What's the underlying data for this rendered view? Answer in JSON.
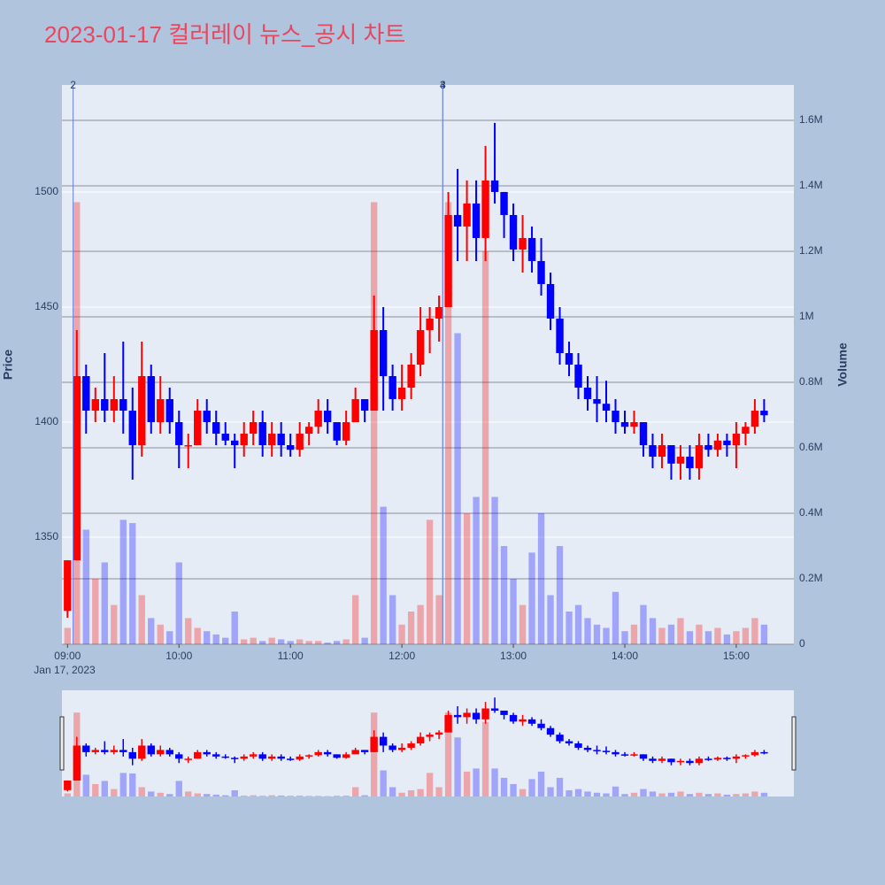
{
  "chart_data": {
    "type": "candlestick",
    "title": "2023-01-17 컬러레이 뉴스_공시 차트",
    "ylabel": "Price",
    "y2label": "Volume",
    "x_date_label": "Jan 17, 2023",
    "up_color": "#ff0000",
    "down_color": "#0000ff",
    "x": [
      "2023-01-17 09:00",
      "2023-01-17 09:05",
      "2023-01-17 09:10",
      "2023-01-17 09:15",
      "2023-01-17 09:20",
      "2023-01-17 09:25",
      "2023-01-17 09:30",
      "2023-01-17 09:35",
      "2023-01-17 09:40",
      "2023-01-17 09:45",
      "2023-01-17 09:50",
      "2023-01-17 09:55",
      "2023-01-17 10:00",
      "2023-01-17 10:05",
      "2023-01-17 10:10",
      "2023-01-17 10:15",
      "2023-01-17 10:20",
      "2023-01-17 10:25",
      "2023-01-17 10:30",
      "2023-01-17 10:35",
      "2023-01-17 10:40",
      "2023-01-17 10:45",
      "2023-01-17 10:50",
      "2023-01-17 10:55",
      "2023-01-17 11:00",
      "2023-01-17 11:05",
      "2023-01-17 11:10",
      "2023-01-17 11:15",
      "2023-01-17 11:20",
      "2023-01-17 11:25",
      "2023-01-17 11:30",
      "2023-01-17 11:35",
      "2023-01-17 11:40",
      "2023-01-17 11:45",
      "2023-01-17 11:50",
      "2023-01-17 11:55",
      "2023-01-17 12:00",
      "2023-01-17 12:05",
      "2023-01-17 12:10",
      "2023-01-17 12:15",
      "2023-01-17 12:20",
      "2023-01-17 12:25",
      "2023-01-17 12:30",
      "2023-01-17 12:35",
      "2023-01-17 12:40",
      "2023-01-17 12:45",
      "2023-01-17 12:50",
      "2023-01-17 12:55",
      "2023-01-17 13:00",
      "2023-01-17 13:05",
      "2023-01-17 13:10",
      "2023-01-17 13:15",
      "2023-01-17 13:20",
      "2023-01-17 13:25",
      "2023-01-17 13:30",
      "2023-01-17 13:35",
      "2023-01-17 13:40",
      "2023-01-17 13:45",
      "2023-01-17 13:50",
      "2023-01-17 13:55",
      "2023-01-17 14:00",
      "2023-01-17 14:05",
      "2023-01-17 14:10",
      "2023-01-17 14:15",
      "2023-01-17 14:20",
      "2023-01-17 14:25",
      "2023-01-17 14:30",
      "2023-01-17 14:35",
      "2023-01-17 14:40",
      "2023-01-17 14:45",
      "2023-01-17 14:50",
      "2023-01-17 14:55",
      "2023-01-17 15:00",
      "2023-01-17 15:05",
      "2023-01-17 15:10",
      "2023-01-17 15:15"
    ],
    "open": [
      1318,
      1340,
      1420,
      1405,
      1410,
      1405,
      1410,
      1405,
      1390,
      1420,
      1400,
      1410,
      1400,
      1390,
      1390,
      1405,
      1400,
      1395,
      1392,
      1390,
      1395,
      1400,
      1390,
      1395,
      1390,
      1388,
      1395,
      1398,
      1405,
      1400,
      1392,
      1400,
      1410,
      1405,
      1440,
      1420,
      1410,
      1415,
      1425,
      1440,
      1445,
      1450,
      1490,
      1485,
      1495,
      1480,
      1505,
      1500,
      1490,
      1475,
      1480,
      1470,
      1460,
      1445,
      1430,
      1425,
      1415,
      1410,
      1408,
      1405,
      1400,
      1398,
      1400,
      1390,
      1385,
      1390,
      1382,
      1385,
      1380,
      1390,
      1388,
      1392,
      1390,
      1395,
      1398,
      1405
    ],
    "high": [
      1340,
      1440,
      1425,
      1415,
      1430,
      1420,
      1435,
      1415,
      1435,
      1425,
      1420,
      1415,
      1405,
      1395,
      1410,
      1410,
      1405,
      1400,
      1395,
      1400,
      1405,
      1405,
      1400,
      1400,
      1395,
      1400,
      1400,
      1410,
      1410,
      1400,
      1405,
      1415,
      1410,
      1455,
      1450,
      1425,
      1425,
      1430,
      1450,
      1450,
      1455,
      1500,
      1510,
      1505,
      1505,
      1520,
      1530,
      1500,
      1495,
      1490,
      1485,
      1480,
      1465,
      1450,
      1435,
      1430,
      1420,
      1420,
      1418,
      1410,
      1405,
      1405,
      1400,
      1395,
      1395,
      1390,
      1390,
      1390,
      1395,
      1395,
      1395,
      1395,
      1400,
      1400,
      1410,
      1410
    ],
    "low": [
      1315,
      1340,
      1395,
      1400,
      1400,
      1400,
      1395,
      1375,
      1385,
      1395,
      1395,
      1395,
      1380,
      1380,
      1390,
      1395,
      1390,
      1390,
      1380,
      1385,
      1390,
      1385,
      1385,
      1385,
      1385,
      1385,
      1390,
      1395,
      1395,
      1390,
      1390,
      1400,
      1400,
      1405,
      1405,
      1405,
      1405,
      1410,
      1420,
      1430,
      1435,
      1450,
      1470,
      1470,
      1470,
      1470,
      1495,
      1480,
      1470,
      1465,
      1465,
      1455,
      1440,
      1425,
      1420,
      1410,
      1405,
      1400,
      1400,
      1395,
      1395,
      1395,
      1385,
      1380,
      1380,
      1375,
      1375,
      1375,
      1375,
      1385,
      1385,
      1385,
      1380,
      1390,
      1395,
      1400
    ],
    "close": [
      1340,
      1420,
      1405,
      1410,
      1405,
      1410,
      1405,
      1390,
      1420,
      1400,
      1410,
      1400,
      1390,
      1390,
      1405,
      1400,
      1395,
      1392,
      1390,
      1395,
      1400,
      1390,
      1395,
      1390,
      1388,
      1395,
      1398,
      1405,
      1400,
      1392,
      1400,
      1410,
      1405,
      1440,
      1420,
      1410,
      1415,
      1425,
      1440,
      1445,
      1450,
      1490,
      1485,
      1495,
      1480,
      1505,
      1500,
      1490,
      1475,
      1480,
      1470,
      1460,
      1445,
      1430,
      1425,
      1415,
      1410,
      1408,
      1405,
      1400,
      1398,
      1400,
      1390,
      1385,
      1390,
      1382,
      1385,
      1380,
      1390,
      1388,
      1392,
      1390,
      1395,
      1398,
      1405,
      1403
    ],
    "volume": [
      50000,
      1350000,
      350000,
      200000,
      250000,
      120000,
      380000,
      370000,
      150000,
      80000,
      60000,
      40000,
      250000,
      80000,
      50000,
      40000,
      30000,
      20000,
      100000,
      15000,
      20000,
      10000,
      20000,
      15000,
      10000,
      15000,
      10000,
      10000,
      5000,
      10000,
      15000,
      150000,
      20000,
      1350000,
      420000,
      150000,
      60000,
      100000,
      120000,
      380000,
      150000,
      1350000,
      950000,
      400000,
      450000,
      1200000,
      450000,
      300000,
      200000,
      120000,
      280000,
      400000,
      150000,
      300000,
      100000,
      120000,
      80000,
      60000,
      50000,
      160000,
      40000,
      60000,
      120000,
      80000,
      50000,
      60000,
      80000,
      40000,
      60000,
      40000,
      50000,
      30000,
      40000,
      50000,
      80000,
      60000
    ],
    "xlim": [
      "2023-01-17 08:57",
      "2023-01-17 15:31"
    ],
    "xticks": [
      {
        "value": "2023-01-17 09:00",
        "label": "09:00"
      },
      {
        "value": "2023-01-17 10:00",
        "label": "10:00"
      },
      {
        "value": "2023-01-17 11:00",
        "label": "11:00"
      },
      {
        "value": "2023-01-17 12:00",
        "label": "12:00"
      },
      {
        "value": "2023-01-17 13:00",
        "label": "13:00"
      },
      {
        "value": "2023-01-17 14:00",
        "label": "14:00"
      },
      {
        "value": "2023-01-17 15:00",
        "label": "15:00"
      }
    ],
    "ylim": [
      1303.5,
      1546.5
    ],
    "yticks": [
      1350,
      1400,
      1450,
      1500
    ],
    "y2lim": [
      0,
      1708000
    ],
    "y2ticks": [
      0,
      {
        "value": 200000,
        "label": "0.2M"
      },
      {
        "value": 400000,
        "label": "0.4M"
      },
      {
        "value": 600000,
        "label": "0.6M"
      },
      {
        "value": 800000,
        "label": "0.8M"
      },
      {
        "value": 1000000,
        "label": "1M"
      },
      {
        "value": 1200000,
        "label": "1.2M"
      },
      {
        "value": 1400000,
        "label": "1.4M"
      },
      {
        "value": 1600000,
        "label": "1.6M"
      }
    ],
    "annotations": [
      {
        "x": "2023-01-17 09:03",
        "label": "2"
      },
      {
        "x": "2023-01-17 12:22",
        "label": "3"
      },
      {
        "x": "2023-01-17 12:22",
        "label": "4"
      }
    ]
  }
}
